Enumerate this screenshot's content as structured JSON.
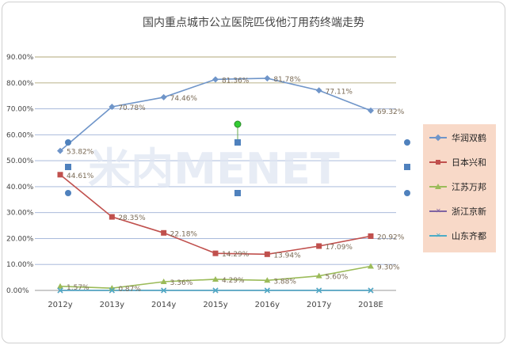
{
  "chart_data": {
    "type": "line",
    "title": "国内重点城市公立医院匹伐他汀用药终端走势",
    "categories": [
      "2012y",
      "2013y",
      "2014y",
      "2015y",
      "2016y",
      "2017y",
      "2018E"
    ],
    "ylim": [
      0,
      90
    ],
    "yticks": [
      "0.00%",
      "10.00%",
      "20.00%",
      "30.00%",
      "40.00%",
      "50.00%",
      "60.00%",
      "70.00%",
      "80.00%",
      "90.00%"
    ],
    "grid": true,
    "legend_position": "right",
    "watermark": "米内MENET",
    "series": [
      {
        "name": "华润双鹤",
        "color": "#6f95c9",
        "marker": "diamond",
        "values": [
          53.82,
          70.78,
          74.46,
          81.36,
          81.78,
          77.11,
          69.32
        ],
        "labels": [
          "53.82%",
          "70.78%",
          "74.46%",
          "81.36%",
          "81.78%",
          "77.11%",
          "69.32%"
        ]
      },
      {
        "name": "日本兴和",
        "color": "#c0504d",
        "marker": "square",
        "values": [
          44.61,
          28.35,
          22.18,
          14.29,
          13.94,
          17.09,
          20.92
        ],
        "labels": [
          "44.61%",
          "28.35%",
          "22.18%",
          "14.29%",
          "13.94%",
          "17.09%",
          "20.92%"
        ]
      },
      {
        "name": "江苏万邦",
        "color": "#9bbb59",
        "marker": "triangle",
        "values": [
          1.57,
          0.87,
          3.36,
          4.29,
          3.88,
          5.6,
          9.3
        ],
        "labels": [
          "1.57%",
          "0.87%",
          "3.36%",
          "4.29%",
          "3.88%",
          "5.60%",
          "9.30%"
        ]
      },
      {
        "name": "浙江京新",
        "color": "#8064a2",
        "marker": "x",
        "values": [
          0,
          0,
          0,
          0,
          0,
          0,
          0
        ]
      },
      {
        "name": "山东齐都",
        "color": "#4bacc6",
        "marker": "x",
        "values": [
          0,
          0,
          0,
          0,
          0,
          0,
          0
        ]
      }
    ]
  }
}
